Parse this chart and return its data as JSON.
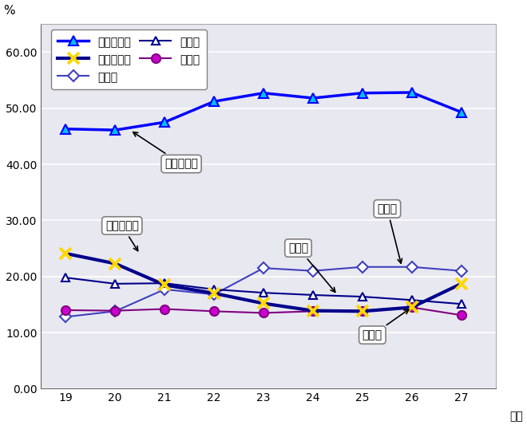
{
  "x": [
    19,
    20,
    21,
    22,
    23,
    24,
    25,
    26,
    27
  ],
  "gimu": [
    46.3,
    46.1,
    47.5,
    51.2,
    52.7,
    51.8,
    52.7,
    52.8,
    49.3
  ],
  "toshi": [
    24.1,
    22.3,
    18.5,
    17.0,
    15.2,
    13.9,
    13.8,
    14.5,
    18.7
  ],
  "fujo": [
    12.8,
    13.8,
    17.7,
    16.8,
    21.5,
    21.0,
    21.7,
    21.7,
    21.0
  ],
  "jinken": [
    19.8,
    18.7,
    18.8,
    17.7,
    17.1,
    16.7,
    16.4,
    15.8,
    15.1
  ],
  "kosai": [
    14.0,
    13.9,
    14.2,
    13.8,
    13.5,
    13.8,
    13.9,
    14.5,
    13.1
  ],
  "gimu_color": "#0000FF",
  "toshi_color": "#00008B",
  "fujo_color": "#4040C0",
  "jinken_color": "#00008B",
  "kosai_color": "#800080",
  "gimu_marker_color": "#00BFFF",
  "toshi_marker_color": "#FFD700",
  "bg_color": "#F0F0FF",
  "plot_bg": "#FFFFFF",
  "ylabel": "%",
  "xlabel": "年度",
  "ylim": [
    0.0,
    65.0
  ],
  "yticks": [
    0.0,
    10.0,
    20.0,
    30.0,
    40.0,
    50.0,
    60.0
  ],
  "yticklabels": [
    "0.00",
    "10.00",
    "20.00",
    "30.00",
    "40.00",
    "50.00",
    "60.00"
  ],
  "legend_labels": [
    "義務的経費",
    "投資的経費",
    "扶助費",
    "人件費",
    "公債費"
  ],
  "ann_gimu": "義務的経費",
  "ann_toshi": "投資的経費",
  "ann_jinken": "人件費",
  "ann_fujo": "扶助費",
  "ann_kosai": "公債費"
}
